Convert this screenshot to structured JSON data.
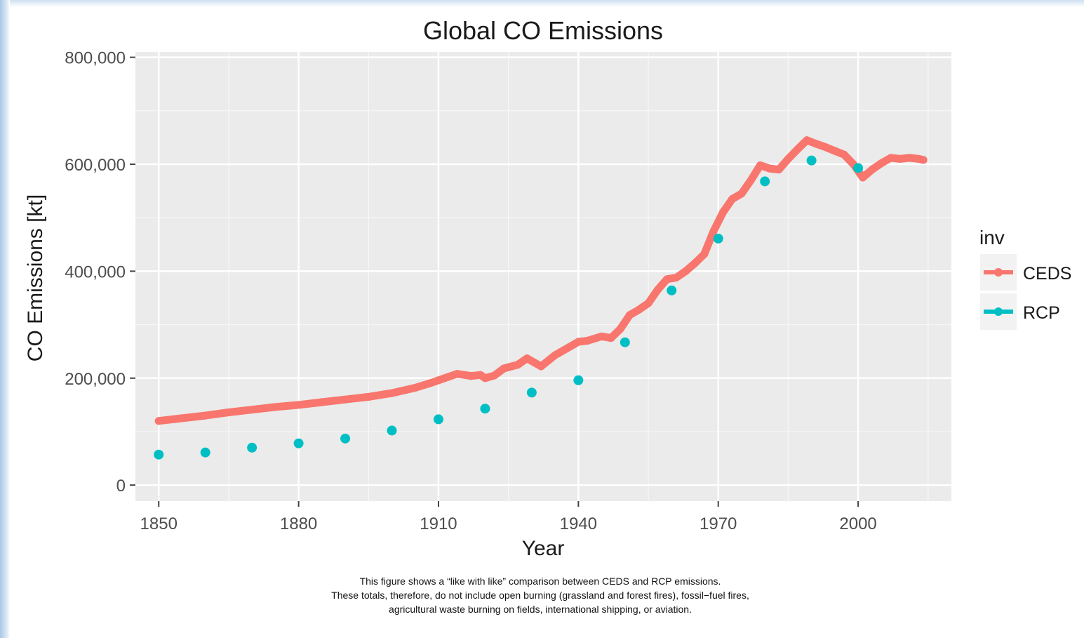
{
  "chart_data": {
    "type": "line",
    "title": "Global CO Emissions",
    "xlabel": "Year",
    "ylabel": "CO Emissions [kt]",
    "xlim": [
      1845,
      2020
    ],
    "ylim": [
      -30000,
      810000
    ],
    "x_ticks": [
      1850,
      1880,
      1910,
      1940,
      1970,
      2000
    ],
    "x_tick_labels": [
      "1850",
      "1880",
      "1910",
      "1940",
      "1970",
      "2000"
    ],
    "y_ticks": [
      0,
      200000,
      400000,
      600000,
      800000
    ],
    "y_tick_labels": [
      "0",
      "200,000",
      "400,000",
      "600,000",
      "800,000"
    ],
    "grid": true,
    "legend": {
      "title": "inv",
      "position": "right",
      "entries": [
        "CEDS",
        "RCP"
      ]
    },
    "colors": {
      "CEDS": "#F8766D",
      "RCP": "#00BFC4",
      "panel": "#EBEBEB",
      "grid": "#FFFFFF"
    },
    "series": [
      {
        "name": "CEDS",
        "style": "line",
        "x": [
          1850,
          1855,
          1860,
          1865,
          1870,
          1875,
          1880,
          1885,
          1890,
          1895,
          1900,
          1905,
          1908,
          1910,
          1912,
          1914,
          1917,
          1919,
          1920,
          1922,
          1924,
          1927,
          1929,
          1932,
          1935,
          1938,
          1940,
          1942,
          1945,
          1947,
          1949,
          1951,
          1953,
          1955,
          1957,
          1959,
          1961,
          1963,
          1965,
          1967,
          1969,
          1971,
          1973,
          1975,
          1977,
          1979,
          1981,
          1983,
          1985,
          1987,
          1989,
          1991,
          1993,
          1995,
          1997,
          1999,
          2001,
          2003,
          2005,
          2007,
          2009,
          2011,
          2013,
          2014
        ],
        "y": [
          120000,
          125000,
          130000,
          136000,
          141000,
          146000,
          150000,
          155000,
          160000,
          165000,
          172000,
          182000,
          190000,
          196000,
          202000,
          208000,
          204000,
          206000,
          200000,
          205000,
          218000,
          225000,
          237000,
          222000,
          243000,
          258000,
          268000,
          270000,
          278000,
          275000,
          292000,
          318000,
          328000,
          340000,
          365000,
          385000,
          388000,
          400000,
          415000,
          432000,
          475000,
          510000,
          535000,
          545000,
          570000,
          598000,
          592000,
          590000,
          610000,
          628000,
          645000,
          638000,
          632000,
          625000,
          618000,
          600000,
          575000,
          590000,
          602000,
          612000,
          610000,
          612000,
          610000,
          608000
        ]
      },
      {
        "name": "RCP",
        "style": "points",
        "x": [
          1850,
          1860,
          1870,
          1880,
          1890,
          1900,
          1910,
          1920,
          1930,
          1940,
          1950,
          1960,
          1970,
          1980,
          1990,
          2000
        ],
        "y": [
          57000,
          61000,
          70000,
          78000,
          87000,
          102000,
          123000,
          143000,
          173000,
          196000,
          267000,
          364000,
          461000,
          568000,
          607000,
          593000
        ]
      }
    ],
    "caption": [
      "This figure shows a “like with like” comparison between CEDS and RCP emissions.",
      "These totals, therefore, do not include open burning (grassland and forest fires), fossil−fuel fires,",
      "agricultural waste burning on fields, international shipping, or aviation."
    ]
  }
}
